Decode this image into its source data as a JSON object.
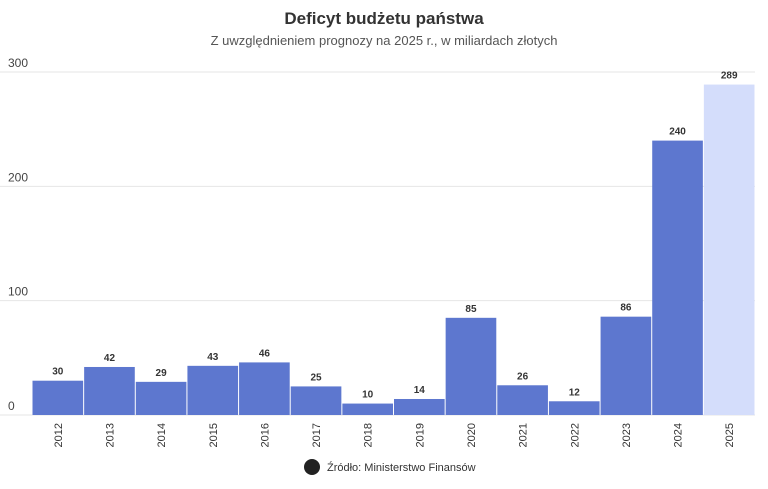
{
  "chart_data": {
    "type": "bar",
    "title": "Deficyt budżetu państwa",
    "subtitle": "Z uwzględnieniem prognozy na 2025 r., w miliardach złotych",
    "categories": [
      "2012",
      "2013",
      "2014",
      "2015",
      "2016",
      "2017",
      "2018",
      "2019",
      "2020",
      "2021",
      "2022",
      "2023",
      "2024",
      "2025"
    ],
    "values": [
      30,
      42,
      29,
      43,
      46,
      25,
      10,
      14,
      85,
      26,
      12,
      86,
      240,
      289
    ],
    "colors": [
      "#5d77cf",
      "#5d77cf",
      "#5d77cf",
      "#5d77cf",
      "#5d77cf",
      "#5d77cf",
      "#5d77cf",
      "#5d77cf",
      "#5d77cf",
      "#5d77cf",
      "#5d77cf",
      "#5d77cf",
      "#5d77cf",
      "#d4ddfb"
    ],
    "ylim": [
      0,
      300
    ],
    "yticks": [
      0,
      100,
      200,
      300
    ],
    "grid": true,
    "source": "Źródło: Ministerstwo Finansów"
  }
}
